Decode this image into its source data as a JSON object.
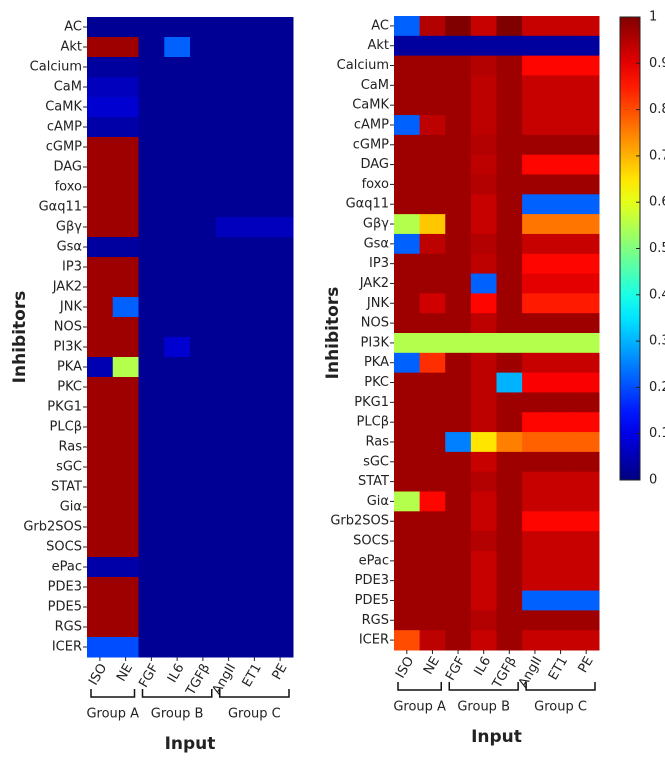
{
  "chart_data": [
    {
      "type": "heatmap",
      "x_label": "Input",
      "y_label": "Inhibitors",
      "colormap": "jet",
      "zlim": [
        0,
        1
      ],
      "rows": [
        "AC",
        "Akt",
        "Calcium",
        "CaM",
        "CaMK",
        "cAMP",
        "cGMP",
        "DAG",
        "foxo",
        "Gαq11",
        "Gβγ",
        "Gsα",
        "IP3",
        "JAK2",
        "JNK",
        "NOS",
        "PI3K",
        "PKA",
        "PKC",
        "PKG1",
        "PLCβ",
        "Ras",
        "sGC",
        "STAT",
        "Giα",
        "Grb2SOS",
        "SOCS",
        "ePac",
        "PDE3",
        "PDE5",
        "RGS",
        "ICER"
      ],
      "x_groups": [
        {
          "label": "Group A",
          "categories": [
            "ISO",
            "NE"
          ]
        },
        {
          "label": "Group B",
          "categories": [
            "FGF",
            "IL6",
            "TGFβ"
          ]
        },
        {
          "label": "Group C",
          "categories": [
            "AngII",
            "ET1",
            "PE"
          ]
        }
      ],
      "values": [
        [
          0.02,
          0.02,
          0.02,
          0.02,
          0.02,
          0.02,
          0.02,
          0.02
        ],
        [
          0.97,
          0.97,
          0.02,
          0.22,
          0.02,
          0.02,
          0.02,
          0.02
        ],
        [
          0.03,
          0.03,
          0.02,
          0.02,
          0.02,
          0.02,
          0.02,
          0.02
        ],
        [
          0.06,
          0.06,
          0.02,
          0.02,
          0.02,
          0.02,
          0.02,
          0.02
        ],
        [
          0.08,
          0.08,
          0.02,
          0.02,
          0.02,
          0.02,
          0.02,
          0.02
        ],
        [
          0.04,
          0.04,
          0.02,
          0.02,
          0.02,
          0.02,
          0.02,
          0.02
        ],
        [
          0.97,
          0.97,
          0.02,
          0.02,
          0.02,
          0.02,
          0.02,
          0.02
        ],
        [
          0.97,
          0.97,
          0.02,
          0.02,
          0.02,
          0.02,
          0.02,
          0.02
        ],
        [
          0.97,
          0.97,
          0.02,
          0.02,
          0.02,
          0.02,
          0.02,
          0.02
        ],
        [
          0.97,
          0.97,
          0.02,
          0.02,
          0.02,
          0.02,
          0.02,
          0.02
        ],
        [
          0.97,
          0.97,
          0.02,
          0.02,
          0.02,
          0.06,
          0.06,
          0.06
        ],
        [
          0.03,
          0.03,
          0.02,
          0.02,
          0.02,
          0.02,
          0.02,
          0.02
        ],
        [
          0.97,
          0.97,
          0.02,
          0.02,
          0.02,
          0.02,
          0.02,
          0.02
        ],
        [
          0.97,
          0.97,
          0.02,
          0.02,
          0.02,
          0.02,
          0.02,
          0.02
        ],
        [
          0.97,
          0.22,
          0.02,
          0.02,
          0.02,
          0.02,
          0.02,
          0.02
        ],
        [
          0.97,
          0.97,
          0.02,
          0.02,
          0.02,
          0.02,
          0.02,
          0.02
        ],
        [
          0.97,
          0.97,
          0.02,
          0.08,
          0.02,
          0.02,
          0.02,
          0.02
        ],
        [
          0.05,
          0.55,
          0.02,
          0.02,
          0.02,
          0.02,
          0.02,
          0.02
        ],
        [
          0.97,
          0.97,
          0.02,
          0.02,
          0.02,
          0.02,
          0.02,
          0.02
        ],
        [
          0.97,
          0.97,
          0.02,
          0.02,
          0.02,
          0.02,
          0.02,
          0.02
        ],
        [
          0.97,
          0.97,
          0.02,
          0.02,
          0.02,
          0.02,
          0.02,
          0.02
        ],
        [
          0.97,
          0.97,
          0.02,
          0.02,
          0.02,
          0.02,
          0.02,
          0.02
        ],
        [
          0.97,
          0.97,
          0.02,
          0.02,
          0.02,
          0.02,
          0.02,
          0.02
        ],
        [
          0.97,
          0.97,
          0.02,
          0.02,
          0.02,
          0.02,
          0.02,
          0.02
        ],
        [
          0.97,
          0.97,
          0.02,
          0.02,
          0.02,
          0.02,
          0.02,
          0.02
        ],
        [
          0.97,
          0.97,
          0.02,
          0.02,
          0.02,
          0.02,
          0.02,
          0.02
        ],
        [
          0.97,
          0.97,
          0.02,
          0.02,
          0.02,
          0.02,
          0.02,
          0.02
        ],
        [
          0.04,
          0.04,
          0.02,
          0.02,
          0.02,
          0.02,
          0.02,
          0.02
        ],
        [
          0.97,
          0.97,
          0.02,
          0.02,
          0.02,
          0.02,
          0.02,
          0.02
        ],
        [
          0.97,
          0.97,
          0.02,
          0.02,
          0.02,
          0.02,
          0.02,
          0.02
        ],
        [
          0.97,
          0.97,
          0.02,
          0.02,
          0.02,
          0.02,
          0.02,
          0.02
        ],
        [
          0.2,
          0.2,
          0.02,
          0.02,
          0.02,
          0.02,
          0.02,
          0.02
        ]
      ]
    },
    {
      "type": "heatmap",
      "x_label": "Input",
      "y_label": "Inhibitors",
      "colormap": "jet",
      "zlim": [
        0,
        1
      ],
      "zticks": [
        0,
        0.1,
        0.2,
        0.3,
        0.4,
        0.5,
        0.6,
        0.7,
        0.8,
        0.9,
        1
      ],
      "rows": [
        "AC",
        "Akt",
        "Calcium",
        "CaM",
        "CaMK",
        "cAMP",
        "cGMP",
        "DAG",
        "foxo",
        "Gαq11",
        "Gβγ",
        "Gsα",
        "IP3",
        "JAK2",
        "JNK",
        "NOS",
        "PI3K",
        "PKA",
        "PKC",
        "PKG1",
        "PLCβ",
        "Ras",
        "sGC",
        "STAT",
        "Giα",
        "Grb2SOS",
        "SOCS",
        "ePac",
        "PDE3",
        "PDE5",
        "RGS",
        "ICER"
      ],
      "x_groups": [
        {
          "label": "Group A",
          "categories": [
            "ISO",
            "NE"
          ]
        },
        {
          "label": "Group B",
          "categories": [
            "FGF",
            "IL6",
            "TGFβ"
          ]
        },
        {
          "label": "Group C",
          "categories": [
            "AngII",
            "ET1",
            "PE"
          ]
        }
      ],
      "values": [
        [
          0.22,
          0.95,
          1.0,
          0.93,
          1.0,
          0.93,
          0.93,
          0.93
        ],
        [
          0.03,
          0.03,
          0.03,
          0.03,
          0.03,
          0.03,
          0.03,
          0.03
        ],
        [
          0.97,
          0.97,
          0.97,
          0.95,
          0.97,
          0.87,
          0.87,
          0.87
        ],
        [
          0.97,
          0.97,
          0.97,
          0.94,
          0.97,
          0.93,
          0.93,
          0.93
        ],
        [
          0.97,
          0.97,
          0.97,
          0.94,
          0.97,
          0.93,
          0.93,
          0.93
        ],
        [
          0.22,
          0.94,
          0.97,
          0.94,
          0.97,
          0.93,
          0.93,
          0.93
        ],
        [
          0.97,
          0.97,
          0.97,
          0.95,
          0.97,
          0.97,
          0.97,
          0.97
        ],
        [
          0.97,
          0.97,
          0.97,
          0.94,
          0.97,
          0.87,
          0.87,
          0.87
        ],
        [
          0.97,
          0.97,
          0.97,
          0.95,
          0.97,
          0.97,
          0.97,
          0.97
        ],
        [
          0.97,
          0.97,
          0.97,
          0.93,
          0.97,
          0.22,
          0.22,
          0.22
        ],
        [
          0.55,
          0.68,
          0.97,
          0.93,
          0.97,
          0.76,
          0.76,
          0.76
        ],
        [
          0.22,
          0.94,
          0.97,
          0.95,
          0.97,
          0.93,
          0.93,
          0.93
        ],
        [
          0.97,
          0.97,
          0.97,
          0.94,
          0.97,
          0.87,
          0.87,
          0.87
        ],
        [
          0.97,
          0.97,
          0.97,
          0.22,
          0.97,
          0.9,
          0.9,
          0.9
        ],
        [
          0.97,
          0.92,
          0.97,
          0.87,
          0.97,
          0.85,
          0.85,
          0.85
        ],
        [
          0.97,
          0.97,
          0.97,
          0.94,
          0.97,
          0.97,
          0.97,
          0.97
        ],
        [
          0.55,
          0.55,
          0.55,
          0.55,
          0.55,
          0.55,
          0.55,
          0.55
        ],
        [
          0.22,
          0.83,
          0.97,
          0.94,
          0.97,
          0.93,
          0.93,
          0.93
        ],
        [
          0.97,
          0.97,
          0.97,
          0.94,
          0.3,
          0.88,
          0.88,
          0.88
        ],
        [
          0.97,
          0.97,
          0.97,
          0.94,
          0.97,
          0.97,
          0.97,
          0.97
        ],
        [
          0.97,
          0.97,
          0.97,
          0.94,
          0.97,
          0.87,
          0.87,
          0.87
        ],
        [
          0.97,
          0.97,
          0.25,
          0.65,
          0.75,
          0.78,
          0.78,
          0.78
        ],
        [
          0.97,
          0.97,
          0.97,
          0.93,
          0.97,
          0.97,
          0.97,
          0.97
        ],
        [
          0.97,
          0.97,
          0.97,
          0.95,
          0.97,
          0.93,
          0.93,
          0.93
        ],
        [
          0.55,
          0.87,
          0.97,
          0.93,
          0.97,
          0.93,
          0.93,
          0.93
        ],
        [
          0.97,
          0.97,
          0.97,
          0.93,
          0.97,
          0.87,
          0.87,
          0.87
        ],
        [
          0.97,
          0.97,
          0.97,
          0.95,
          0.97,
          0.93,
          0.93,
          0.93
        ],
        [
          0.97,
          0.97,
          0.97,
          0.93,
          0.97,
          0.93,
          0.93,
          0.93
        ],
        [
          0.97,
          0.97,
          0.97,
          0.93,
          0.97,
          0.93,
          0.93,
          0.93
        ],
        [
          0.97,
          0.97,
          0.97,
          0.93,
          0.97,
          0.22,
          0.22,
          0.22
        ],
        [
          0.97,
          0.97,
          0.97,
          0.95,
          0.97,
          0.97,
          0.97,
          0.97
        ],
        [
          0.8,
          0.94,
          0.97,
          0.93,
          0.97,
          0.93,
          0.93,
          0.93
        ]
      ]
    }
  ]
}
